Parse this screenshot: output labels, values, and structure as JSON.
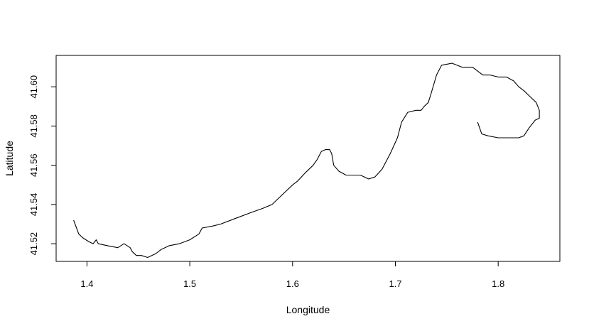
{
  "chart_data": {
    "type": "line",
    "title": "",
    "xlabel": "Longitude",
    "ylabel": "Latitude",
    "xlim": [
      1.37,
      1.86
    ],
    "ylim": [
      41.511,
      41.616
    ],
    "xticks": [
      1.4,
      1.5,
      1.6,
      1.7,
      1.8
    ],
    "yticks": [
      41.52,
      41.54,
      41.56,
      41.58,
      41.6
    ],
    "xtick_labels": [
      "1.4",
      "1.5",
      "1.6",
      "1.7",
      "1.8"
    ],
    "ytick_labels": [
      "41.52",
      "41.54",
      "41.56",
      "41.58",
      "41.60"
    ],
    "grid": false,
    "legend": "none",
    "line_color": "#000000",
    "series": [
      {
        "x": [
          1.387,
          1.392,
          1.396,
          1.402,
          1.406,
          1.409,
          1.411,
          1.42,
          1.43,
          1.436,
          1.442,
          1.444,
          1.448,
          1.453,
          1.459,
          1.467,
          1.472,
          1.48,
          1.49,
          1.5,
          1.509,
          1.512,
          1.522,
          1.53,
          1.545,
          1.56,
          1.571,
          1.58,
          1.59,
          1.6,
          1.605,
          1.612,
          1.62,
          1.624,
          1.628,
          1.632,
          1.636,
          1.638,
          1.64,
          1.645,
          1.652,
          1.666,
          1.674,
          1.68,
          1.687,
          1.695,
          1.702,
          1.706,
          1.712,
          1.72,
          1.725,
          1.728,
          1.732,
          1.735,
          1.74,
          1.745,
          1.755,
          1.765,
          1.775,
          1.785,
          1.792,
          1.8,
          1.808,
          1.815,
          1.82,
          1.825,
          1.831,
          1.837,
          1.84,
          1.84,
          1.836,
          1.83,
          1.825,
          1.82,
          1.81,
          1.8,
          1.79,
          1.784,
          1.782,
          1.78
        ],
        "y": [
          41.532,
          41.525,
          41.523,
          41.521,
          41.52,
          41.522,
          41.52,
          41.519,
          41.518,
          41.52,
          41.518,
          41.516,
          41.514,
          41.514,
          41.513,
          41.515,
          41.517,
          41.519,
          41.52,
          41.522,
          41.525,
          41.528,
          41.529,
          41.53,
          41.533,
          41.536,
          41.538,
          41.54,
          41.545,
          41.55,
          41.552,
          41.556,
          41.56,
          41.563,
          41.567,
          41.568,
          41.568,
          41.566,
          41.56,
          41.557,
          41.555,
          41.555,
          41.553,
          41.554,
          41.558,
          41.566,
          41.574,
          41.582,
          41.587,
          41.588,
          41.588,
          41.59,
          41.592,
          41.597,
          41.606,
          41.611,
          41.612,
          41.61,
          41.61,
          41.606,
          41.606,
          41.605,
          41.605,
          41.603,
          41.6,
          41.598,
          41.595,
          41.592,
          41.588,
          41.584,
          41.583,
          41.579,
          41.575,
          41.574,
          41.574,
          41.574,
          41.575,
          41.576,
          41.579,
          41.582
        ]
      }
    ]
  }
}
